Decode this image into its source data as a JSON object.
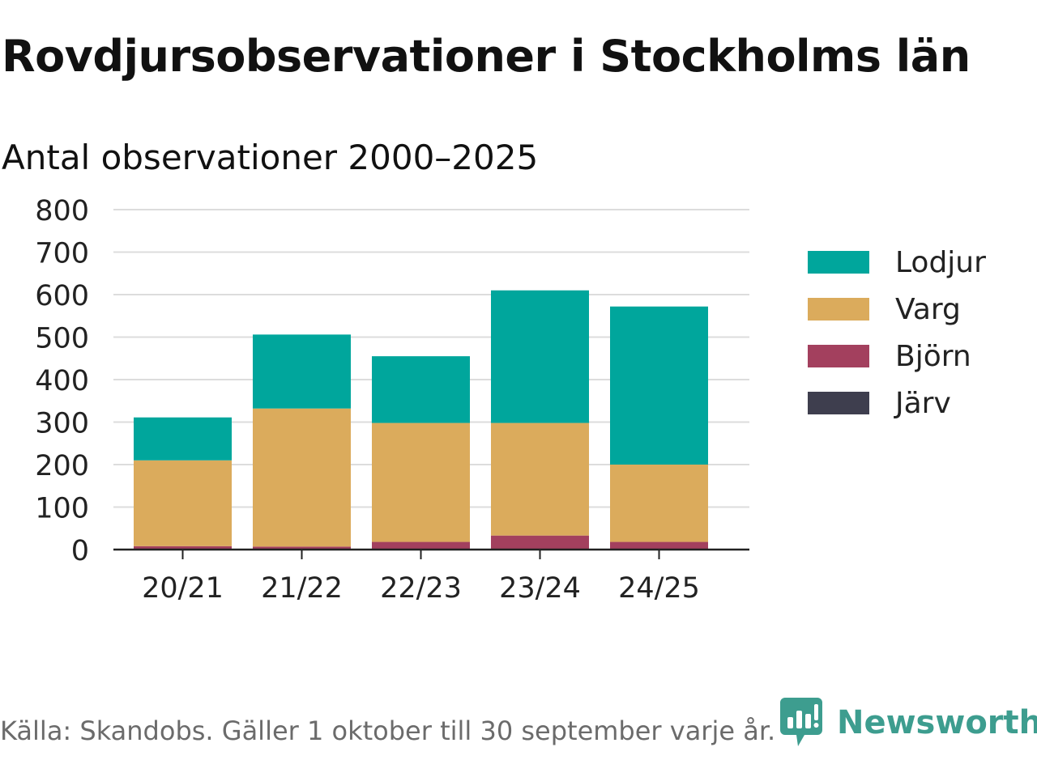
{
  "chart_data": {
    "type": "bar",
    "stacked": true,
    "title": "Rovdjursobservationer i Stockholms län",
    "subtitle": "Antal observationer 2000–2025",
    "categories": [
      "20/21",
      "21/22",
      "22/23",
      "23/24",
      "24/25"
    ],
    "series": [
      {
        "name": "Järv",
        "color": "#3e3e4e",
        "values": [
          0,
          0,
          0,
          0,
          0
        ]
      },
      {
        "name": "Björn",
        "color": "#a3405e",
        "values": [
          8,
          7,
          18,
          33,
          18
        ]
      },
      {
        "name": "Varg",
        "color": "#dbab5c",
        "values": [
          202,
          325,
          280,
          265,
          182
        ]
      },
      {
        "name": "Lodjur",
        "color": "#00a69c",
        "values": [
          101,
          174,
          157,
          312,
          372
        ]
      }
    ],
    "legend_order": [
      "Lodjur",
      "Varg",
      "Björn",
      "Järv"
    ],
    "xlabel": "",
    "ylabel": "",
    "ylim": [
      0,
      800
    ],
    "yticks": [
      0,
      100,
      200,
      300,
      400,
      500,
      600,
      700,
      800
    ],
    "grid": true,
    "legend_position": "right"
  },
  "footer": {
    "source": "Källa: Skandobs. Gäller 1 oktober till 30 september varje år."
  },
  "brand": {
    "name": "Newsworthy",
    "color": "#3d9d8f",
    "icon": "newsworthy-logo-icon"
  }
}
